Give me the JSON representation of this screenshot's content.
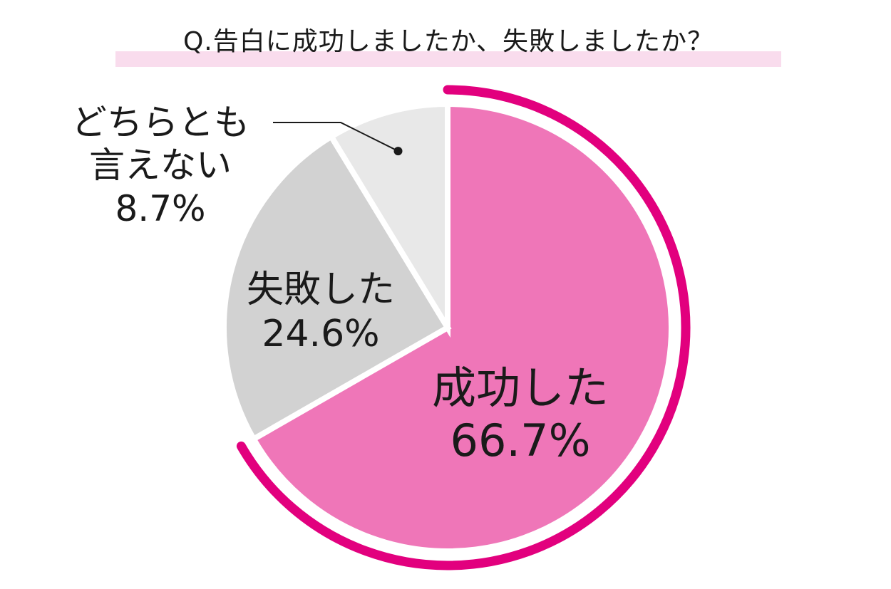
{
  "chart_data": {
    "type": "pie",
    "title": "Q.告白に成功しましたか、失敗しましたか？",
    "start": "12 o'clock, clockwise",
    "slices": [
      {
        "label": "成功した",
        "value": 66.7,
        "value_label": "66.7%",
        "color": "#ef76b8",
        "highlight_ring_color": "#e2007e"
      },
      {
        "label": "失敗した",
        "value": 24.6,
        "value_label": "24.6%",
        "color": "#d2d2d2"
      },
      {
        "label_lines": [
          "どちらとも",
          "言えない"
        ],
        "value": 8.7,
        "value_label": "8.7%",
        "color": "#e8e8e8",
        "leader_line": true
      }
    ],
    "title_underline_color": "#f9dced",
    "separator_color": "#ffffff",
    "leader_color": "#1a1a1a"
  }
}
